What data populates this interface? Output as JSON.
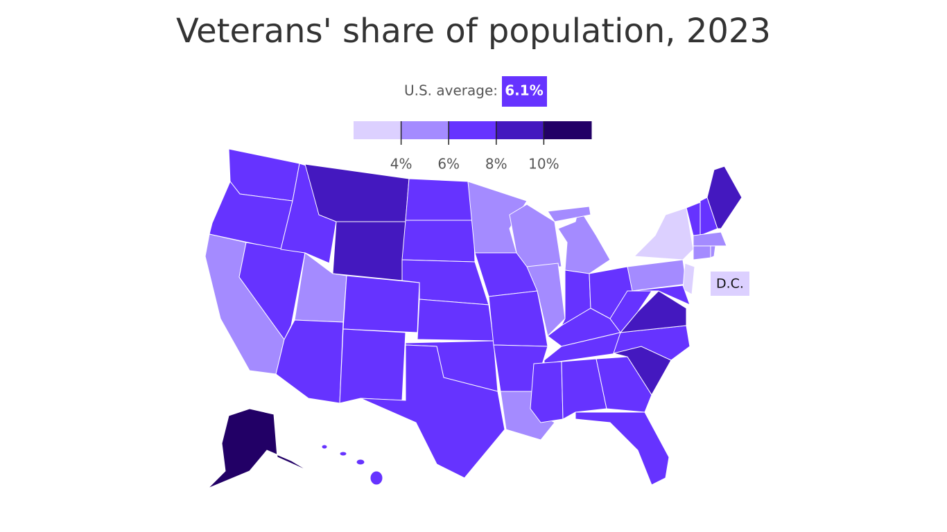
{
  "chart_data": {
    "type": "choropleth",
    "title": "Veterans' share of population, 2023",
    "average_label": "U.S. average:",
    "us_average": {
      "value": 6.1,
      "label": "6.1%"
    },
    "legend": {
      "colors": [
        "#dcd0ff",
        "#a48bff",
        "#6633ff",
        "#4418bf",
        "#220066"
      ],
      "ticks": [
        {
          "value": 4,
          "label": "4%"
        },
        {
          "value": 6,
          "label": "6%"
        },
        {
          "value": 8,
          "label": "8%"
        },
        {
          "value": 10,
          "label": "10%"
        }
      ]
    },
    "annotations": [
      "D.C."
    ]
  }
}
